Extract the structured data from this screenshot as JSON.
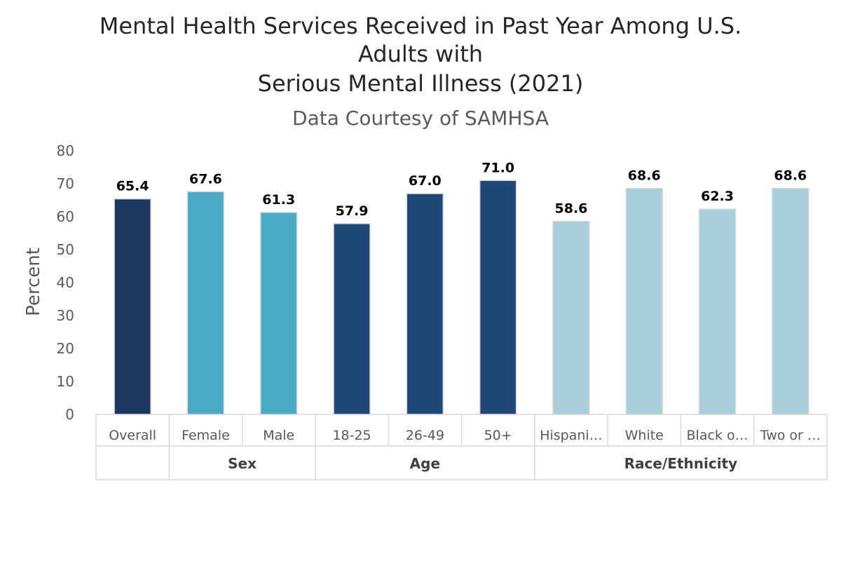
{
  "chart_data": {
    "type": "bar",
    "title_lines": [
      "Mental Health Services Received in Past Year Among U.S.",
      "Adults with",
      "Serious Mental Illness (2021)"
    ],
    "subtitle": "Data Courtesy of SAMHSA",
    "ylabel": "Percent",
    "xlabel": "",
    "ylim": [
      0,
      80
    ],
    "yticks": [
      "0",
      "10",
      "20",
      "30",
      "40",
      "50",
      "60",
      "70",
      "80"
    ],
    "grid": false,
    "legend": "none",
    "categories": [
      "Overall",
      "Female",
      "Male",
      "18-25",
      "26-49",
      "50+",
      "Hispani…",
      "White",
      "Black o…",
      "Two or …"
    ],
    "values": [
      65.4,
      67.6,
      61.3,
      57.9,
      67.0,
      71.0,
      58.6,
      68.6,
      62.3,
      68.6
    ],
    "data_labels": [
      "65.4",
      "67.6",
      "61.3",
      "57.9",
      "67.0",
      "71.0",
      "58.6",
      "68.6",
      "62.3",
      "68.6"
    ],
    "bar_colors": [
      "#1a3860",
      "#4aabc6",
      "#4aabc6",
      "#1f4878",
      "#1f4878",
      "#1f4878",
      "#a8cedc",
      "#a8cedc",
      "#a8cedc",
      "#a8cedc"
    ],
    "groups": [
      {
        "label": "",
        "start": 0,
        "end": 0
      },
      {
        "label": "Sex",
        "start": 1,
        "end": 2
      },
      {
        "label": "Age",
        "start": 3,
        "end": 5
      },
      {
        "label": "Race/Ethnicity",
        "start": 6,
        "end": 9
      }
    ]
  }
}
